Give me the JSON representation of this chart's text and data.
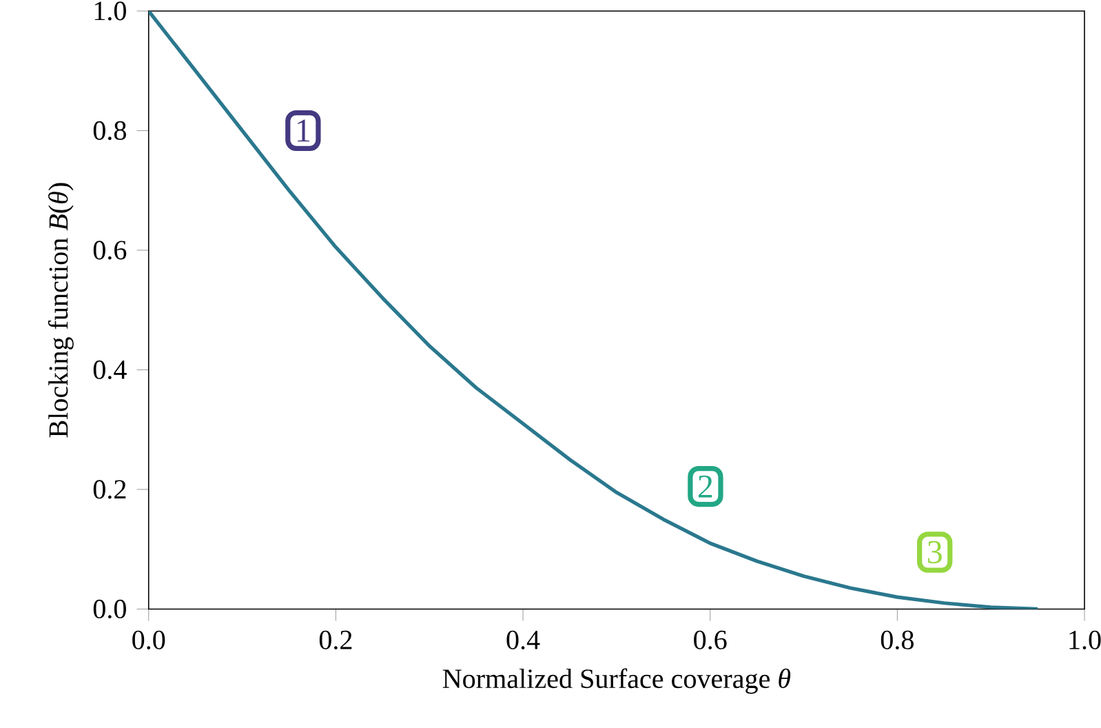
{
  "chart_data": {
    "type": "line",
    "xlabel": "Normalized Surface coverage *θ*",
    "ylabel": "Blocking function *B*(*θ*)",
    "x": [
      0,
      0.05,
      0.1,
      0.15,
      0.2,
      0.25,
      0.3,
      0.35,
      0.4,
      0.45,
      0.5,
      0.55,
      0.6,
      0.65,
      0.7,
      0.75,
      0.8,
      0.85,
      0.9,
      0.95
    ],
    "values": [
      1.0,
      0.9,
      0.8,
      0.7,
      0.605,
      0.52,
      0.44,
      0.37,
      0.31,
      0.25,
      0.195,
      0.15,
      0.11,
      0.08,
      0.055,
      0.035,
      0.02,
      0.01,
      0.003,
      0.0
    ],
    "xlim": [
      0,
      1
    ],
    "ylim": [
      0,
      1
    ],
    "xticks": [
      {
        "value": 0,
        "label": "0.0"
      },
      0.2,
      0.4,
      0.6,
      0.8,
      {
        "value": 1,
        "label": "1.0"
      }
    ],
    "yticks": [
      {
        "value": 0,
        "label": "0.0"
      },
      0.2,
      0.4,
      0.6,
      0.8,
      {
        "value": 1,
        "label": "1.0"
      }
    ],
    "color": "#2a788e",
    "marker": "none",
    "line_style": "solid",
    "annotations": [
      {
        "text": "1",
        "x": 0.165,
        "y": 0.8
      },
      {
        "text": "2",
        "x": 0.595,
        "y": 0.205
      },
      {
        "text": "3",
        "x": 0.84,
        "y": 0.095
      }
    ]
  }
}
